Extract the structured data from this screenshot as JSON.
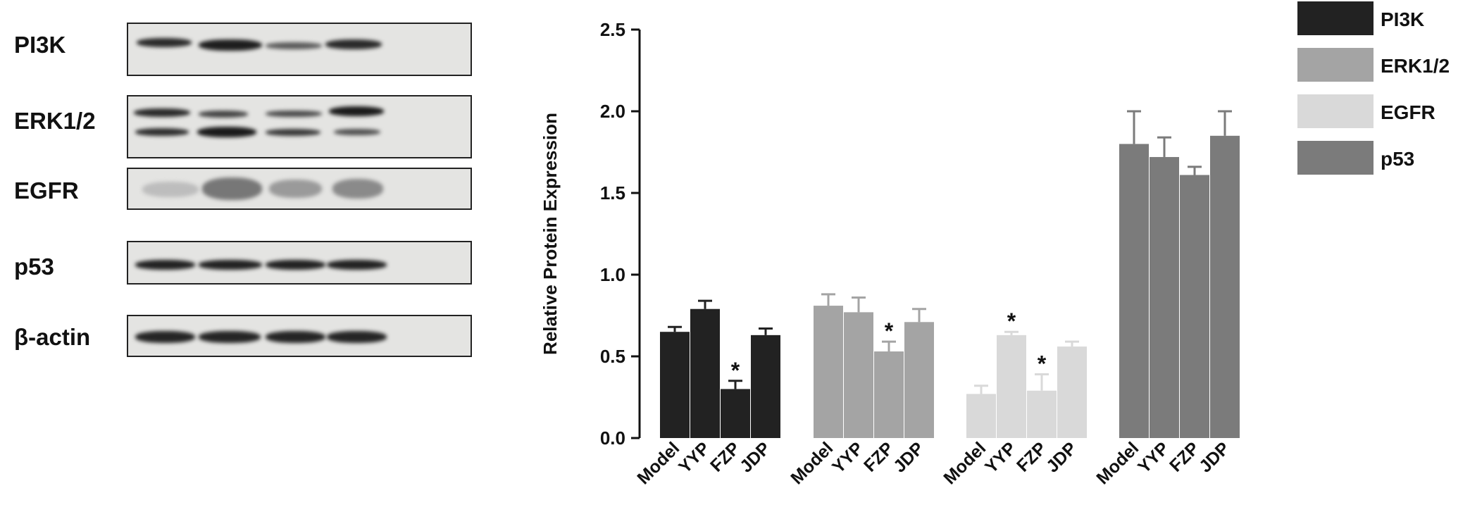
{
  "blot": {
    "rows": [
      {
        "label": "PI3K"
      },
      {
        "label": "ERK1/2"
      },
      {
        "label": "EGFR"
      },
      {
        "label": "p53"
      },
      {
        "label": "β-actin"
      }
    ]
  },
  "chart_data": {
    "type": "bar",
    "ylabel": "Relative Protein Expression",
    "xlabel": "",
    "ylim": [
      0,
      2.5
    ],
    "yticks": [
      "0.0",
      "0.5",
      "1.0",
      "1.5",
      "2.0",
      "2.5"
    ],
    "ytick_values": [
      0,
      0.5,
      1.0,
      1.5,
      2.0,
      2.5
    ],
    "categories": [
      "Model",
      "YYP",
      "FZP",
      "JDP"
    ],
    "legend_position": "top-right",
    "series": [
      {
        "name": "PI3K",
        "color": "#222222",
        "values": [
          0.65,
          0.79,
          0.3,
          0.63
        ],
        "errors": [
          0.03,
          0.05,
          0.05,
          0.04
        ],
        "significant": [
          false,
          false,
          true,
          false
        ]
      },
      {
        "name": "ERK1/2",
        "color": "#a4a4a4",
        "values": [
          0.81,
          0.77,
          0.53,
          0.71
        ],
        "errors": [
          0.07,
          0.09,
          0.06,
          0.08
        ],
        "significant": [
          false,
          false,
          true,
          false
        ]
      },
      {
        "name": "EGFR",
        "color": "#d9d9d9",
        "values": [
          0.27,
          0.63,
          0.29,
          0.56
        ],
        "errors": [
          0.05,
          0.02,
          0.1,
          0.03
        ],
        "significant": [
          false,
          true,
          true,
          false
        ]
      },
      {
        "name": "p53",
        "color": "#7b7b7b",
        "values": [
          1.8,
          1.72,
          1.61,
          1.85
        ],
        "errors": [
          0.2,
          0.12,
          0.05,
          0.15
        ],
        "significant": [
          false,
          false,
          false,
          false
        ]
      }
    ],
    "significance_marker": "*"
  }
}
